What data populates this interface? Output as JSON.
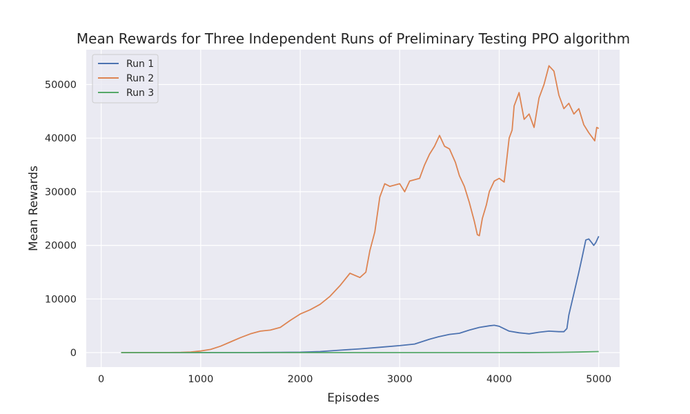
{
  "chart_data": {
    "type": "line",
    "title": "Mean Rewards for Three Independent Runs of Preliminary Testing PPO algorithm",
    "xlabel": "Episodes",
    "ylabel": "Mean Rewards",
    "xlim": [
      -150,
      5210
    ],
    "ylim": [
      -2700,
      56500
    ],
    "xticks": [
      0,
      1000,
      2000,
      3000,
      4000,
      5000
    ],
    "yticks": [
      0,
      10000,
      20000,
      30000,
      40000,
      50000
    ],
    "grid": true,
    "legend_position": "top-left",
    "series": [
      {
        "name": "Run 1",
        "color": "#4c72b0",
        "points": [
          [
            200,
            0
          ],
          [
            1000,
            0
          ],
          [
            1500,
            0
          ],
          [
            1800,
            50
          ],
          [
            2000,
            80
          ],
          [
            2200,
            200
          ],
          [
            2400,
            450
          ],
          [
            2600,
            700
          ],
          [
            2800,
            1000
          ],
          [
            3000,
            1300
          ],
          [
            3150,
            1600
          ],
          [
            3300,
            2500
          ],
          [
            3400,
            3000
          ],
          [
            3500,
            3400
          ],
          [
            3600,
            3600
          ],
          [
            3700,
            4200
          ],
          [
            3800,
            4700
          ],
          [
            3900,
            5000
          ],
          [
            3950,
            5100
          ],
          [
            4000,
            4900
          ],
          [
            4100,
            4000
          ],
          [
            4200,
            3700
          ],
          [
            4300,
            3500
          ],
          [
            4400,
            3800
          ],
          [
            4500,
            4000
          ],
          [
            4600,
            3900
          ],
          [
            4650,
            3900
          ],
          [
            4680,
            4500
          ],
          [
            4700,
            7000
          ],
          [
            4750,
            11000
          ],
          [
            4800,
            15000
          ],
          [
            4830,
            17500
          ],
          [
            4870,
            21000
          ],
          [
            4900,
            21200
          ],
          [
            4930,
            20500
          ],
          [
            4950,
            20000
          ],
          [
            4970,
            20500
          ],
          [
            5000,
            21700
          ]
        ]
      },
      {
        "name": "Run 2",
        "color": "#dd8452",
        "points": [
          [
            200,
            0
          ],
          [
            600,
            0
          ],
          [
            800,
            40
          ],
          [
            900,
            120
          ],
          [
            1000,
            300
          ],
          [
            1100,
            600
          ],
          [
            1200,
            1200
          ],
          [
            1300,
            2000
          ],
          [
            1400,
            2800
          ],
          [
            1500,
            3500
          ],
          [
            1600,
            4000
          ],
          [
            1700,
            4200
          ],
          [
            1800,
            4700
          ],
          [
            1900,
            6000
          ],
          [
            2000,
            7200
          ],
          [
            2100,
            8000
          ],
          [
            2200,
            9000
          ],
          [
            2300,
            10500
          ],
          [
            2400,
            12500
          ],
          [
            2500,
            14800
          ],
          [
            2600,
            14000
          ],
          [
            2660,
            15000
          ],
          [
            2700,
            19000
          ],
          [
            2750,
            22500
          ],
          [
            2800,
            29000
          ],
          [
            2850,
            31500
          ],
          [
            2900,
            31000
          ],
          [
            3000,
            31500
          ],
          [
            3050,
            30000
          ],
          [
            3100,
            32000
          ],
          [
            3200,
            32500
          ],
          [
            3250,
            35000
          ],
          [
            3300,
            37000
          ],
          [
            3350,
            38500
          ],
          [
            3400,
            40500
          ],
          [
            3450,
            38500
          ],
          [
            3500,
            38000
          ],
          [
            3560,
            35500
          ],
          [
            3600,
            33000
          ],
          [
            3650,
            31000
          ],
          [
            3700,
            28000
          ],
          [
            3750,
            24500
          ],
          [
            3780,
            22000
          ],
          [
            3800,
            21800
          ],
          [
            3830,
            25000
          ],
          [
            3870,
            27500
          ],
          [
            3900,
            30000
          ],
          [
            3950,
            32000
          ],
          [
            4000,
            32500
          ],
          [
            4050,
            31800
          ],
          [
            4100,
            40000
          ],
          [
            4130,
            41500
          ],
          [
            4150,
            46000
          ],
          [
            4200,
            48500
          ],
          [
            4250,
            43500
          ],
          [
            4300,
            44500
          ],
          [
            4350,
            42000
          ],
          [
            4400,
            47500
          ],
          [
            4450,
            50000
          ],
          [
            4500,
            53500
          ],
          [
            4550,
            52500
          ],
          [
            4600,
            48000
          ],
          [
            4650,
            45500
          ],
          [
            4700,
            46500
          ],
          [
            4750,
            44500
          ],
          [
            4800,
            45500
          ],
          [
            4850,
            42500
          ],
          [
            4900,
            41000
          ],
          [
            4940,
            40000
          ],
          [
            4960,
            39500
          ],
          [
            4980,
            42000
          ],
          [
            5000,
            41800
          ]
        ]
      },
      {
        "name": "Run 3",
        "color": "#55a868",
        "points": [
          [
            200,
            0
          ],
          [
            1000,
            0
          ],
          [
            2000,
            0
          ],
          [
            3000,
            0
          ],
          [
            4000,
            0
          ],
          [
            4400,
            20
          ],
          [
            4600,
            50
          ],
          [
            4800,
            100
          ],
          [
            5000,
            200
          ]
        ]
      }
    ]
  }
}
